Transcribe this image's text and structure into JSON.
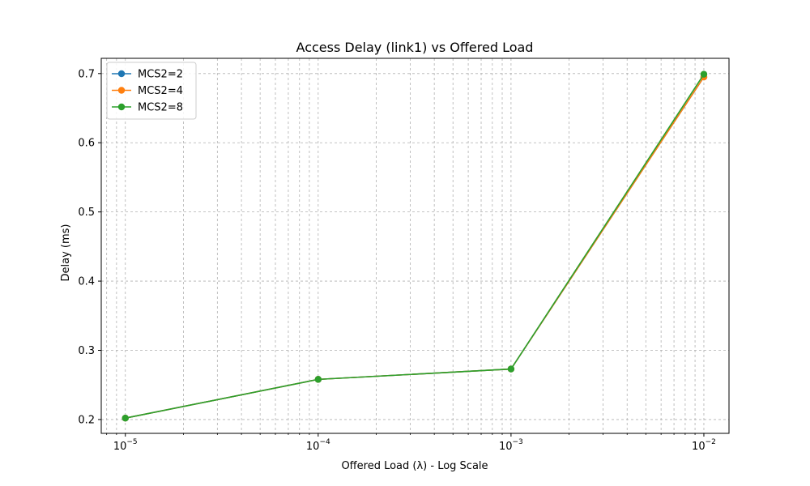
{
  "chart_data": {
    "type": "line",
    "title": "Access Delay (link1) vs Offered Load",
    "xlabel": "Offered Load (λ) - Log Scale",
    "ylabel": "Delay (ms)",
    "x_scale": "log",
    "x": [
      1e-05,
      0.0001,
      0.001,
      0.01
    ],
    "x_tick_labels": [
      {
        "base": "10",
        "exp": "−5"
      },
      {
        "base": "10",
        "exp": "−4"
      },
      {
        "base": "10",
        "exp": "−3"
      },
      {
        "base": "10",
        "exp": "−2"
      }
    ],
    "y_ticks": [
      0.2,
      0.3,
      0.4,
      0.5,
      0.6,
      0.7
    ],
    "y_tick_labels": [
      "0.2",
      "0.3",
      "0.4",
      "0.5",
      "0.6",
      "0.7"
    ],
    "xlim": [
      7.5e-06,
      0.0135
    ],
    "ylim": [
      0.18,
      0.722
    ],
    "grid": true,
    "legend_position": "top-left",
    "series": [
      {
        "name": "MCS2=2",
        "color": "#1f77b4",
        "values": [
          0.202,
          0.258,
          0.273,
          0.695
        ]
      },
      {
        "name": "MCS2=4",
        "color": "#ff7f0e",
        "values": [
          0.202,
          0.258,
          0.273,
          0.695
        ]
      },
      {
        "name": "MCS2=8",
        "color": "#2ca02c",
        "values": [
          0.202,
          0.258,
          0.273,
          0.699
        ]
      }
    ]
  }
}
